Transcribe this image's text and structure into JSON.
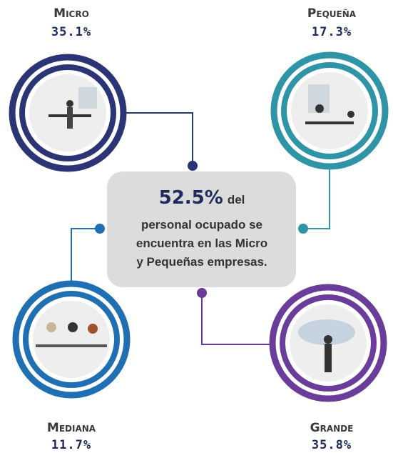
{
  "nodes": [
    {
      "label": "Micro",
      "value": "35.1%"
    },
    {
      "label": "Pequeña",
      "value": "17.3%"
    },
    {
      "label": "Mediana",
      "value": "11.7%"
    },
    {
      "label": "Grande",
      "value": "35.8%"
    }
  ],
  "center": {
    "highlight": "52.5%",
    "lines": [
      "del",
      "personal ocupado se",
      "encuentra en las Micro",
      "y Pequeñas empresas."
    ]
  }
}
